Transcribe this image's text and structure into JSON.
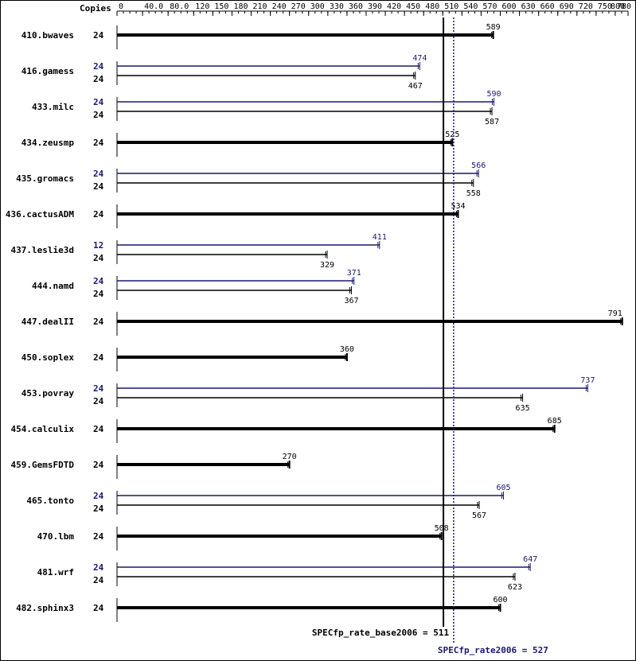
{
  "chart_data": {
    "type": "bar",
    "orientation": "horizontal",
    "copies_header": "Copies",
    "x_ticks": [
      0,
      40.0,
      80.0,
      120,
      150,
      180,
      210,
      240,
      270,
      300,
      330,
      360,
      390,
      420,
      450,
      480,
      510,
      540,
      570,
      600,
      630,
      660,
      690,
      720,
      750,
      780,
      800
    ],
    "x_tick_labels": [
      "0",
      "40.0",
      "80.0",
      "120",
      "150",
      "180",
      "210",
      "240",
      "270",
      "300",
      "330",
      "360",
      "390",
      "420",
      "450",
      "480",
      "510",
      "540",
      "570",
      "600",
      "630",
      "660",
      "690",
      "720",
      "750",
      "780",
      "800"
    ],
    "xlim": [
      0,
      800
    ],
    "colors": {
      "base": "#000000",
      "peak": "#191970"
    },
    "summary": {
      "base_label": "SPECfp_rate_base2006 = 511",
      "base_value": 511,
      "peak_label": "SPECfp_rate2006 = 527",
      "peak_value": 527
    },
    "benchmarks": [
      {
        "name": "410.bwaves",
        "peak": null,
        "base": {
          "copies": "24",
          "value": 589,
          "label": "589"
        }
      },
      {
        "name": "416.gamess",
        "peak": {
          "copies": "24",
          "value": 474,
          "label": "474"
        },
        "base": {
          "copies": "24",
          "value": 467,
          "label": "467"
        }
      },
      {
        "name": "433.milc",
        "peak": {
          "copies": "24",
          "value": 590,
          "label": "590"
        },
        "base": {
          "copies": "24",
          "value": 587,
          "label": "587"
        }
      },
      {
        "name": "434.zeusmp",
        "peak": null,
        "base": {
          "copies": "24",
          "value": 525,
          "label": "525"
        }
      },
      {
        "name": "435.gromacs",
        "peak": {
          "copies": "24",
          "value": 566,
          "label": "566"
        },
        "base": {
          "copies": "24",
          "value": 558,
          "label": "558"
        }
      },
      {
        "name": "436.cactusADM",
        "peak": null,
        "base": {
          "copies": "24",
          "value": 534,
          "label": "534"
        }
      },
      {
        "name": "437.leslie3d",
        "peak": {
          "copies": "12",
          "value": 411,
          "label": "411"
        },
        "base": {
          "copies": "24",
          "value": 329,
          "label": "329"
        }
      },
      {
        "name": "444.namd",
        "peak": {
          "copies": "24",
          "value": 371,
          "label": "371"
        },
        "base": {
          "copies": "24",
          "value": 367,
          "label": "367"
        }
      },
      {
        "name": "447.dealII",
        "peak": null,
        "base": {
          "copies": "24",
          "value": 791,
          "label": "791"
        }
      },
      {
        "name": "450.soplex",
        "peak": null,
        "base": {
          "copies": "24",
          "value": 360,
          "label": "360"
        }
      },
      {
        "name": "453.povray",
        "peak": {
          "copies": "24",
          "value": 737,
          "label": "737"
        },
        "base": {
          "copies": "24",
          "value": 635,
          "label": "635"
        }
      },
      {
        "name": "454.calculix",
        "peak": null,
        "base": {
          "copies": "24",
          "value": 685,
          "label": "685"
        }
      },
      {
        "name": "459.GemsFDTD",
        "peak": null,
        "base": {
          "copies": "24",
          "value": 270,
          "label": "270"
        }
      },
      {
        "name": "465.tonto",
        "peak": {
          "copies": "24",
          "value": 605,
          "label": "605"
        },
        "base": {
          "copies": "24",
          "value": 567,
          "label": "567"
        }
      },
      {
        "name": "470.lbm",
        "peak": null,
        "base": {
          "copies": "24",
          "value": 508,
          "label": "508"
        }
      },
      {
        "name": "481.wrf",
        "peak": {
          "copies": "24",
          "value": 647,
          "label": "647"
        },
        "base": {
          "copies": "24",
          "value": 623,
          "label": "623"
        }
      },
      {
        "name": "482.sphinx3",
        "peak": null,
        "base": {
          "copies": "24",
          "value": 600,
          "label": "600"
        }
      }
    ]
  }
}
